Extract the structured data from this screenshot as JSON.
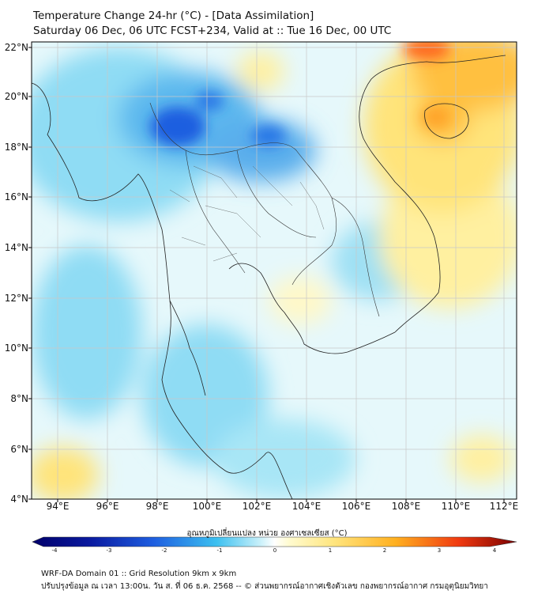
{
  "title_line1": "Temperature Change 24-hr (°C) - [Data Assimilation]",
  "title_line2": "Saturday 06 Dec, 06 UTC FCST+234, Valid at :: Tue 16 Dec, 00 UTC",
  "lat_labels": [
    "22°N",
    "20°N",
    "18°N",
    "16°N",
    "14°N",
    "12°N",
    "10°N",
    "8°N",
    "6°N",
    "4°N"
  ],
  "lon_labels": [
    "94°E",
    "96°E",
    "98°E",
    "100°E",
    "102°E",
    "104°E",
    "106°E",
    "108°E",
    "110°E",
    "112°E"
  ],
  "colorbar": {
    "title": "อุณหภูมิเปลี่ยนแปลง หน่วย องศาเซลเซียส (°C)",
    "ticks": [
      "-4",
      "-3",
      "-2",
      "-1",
      "0",
      "1",
      "2",
      "3",
      "4"
    ],
    "min": -4,
    "max": 4
  },
  "footer_line1": "WRF-DA Domain 01 :: Grid Resolution 9km x 9km",
  "footer_line2": "ปรับปรุงข้อมูล ณ เวลา 13:00น. วัน ส. ที่ 06 ธ.ค. 2568 -- © ส่วนพยากรณ์อากาศเชิงตัวเลข กองพยากรณ์อากาศ กรมอุตุนิยมวิทยา",
  "colors": {
    "cold_dark": "#0a1aa0",
    "cold": "#2a8ae0",
    "cool": "#7cd2f2",
    "neutral": "#ffffff",
    "warm_light": "#fff4b0",
    "warm": "#ffd24a",
    "hot": "#ff7a1a",
    "hot_dark": "#7a0000"
  }
}
